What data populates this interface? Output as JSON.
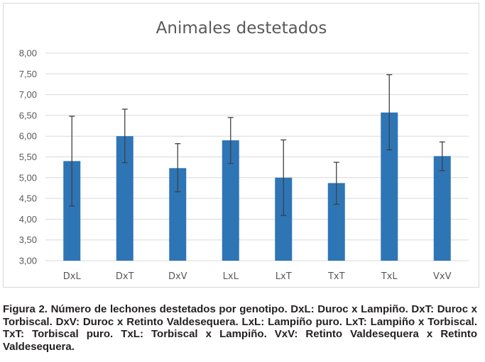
{
  "chart_data": {
    "type": "bar",
    "title": "Animales destetados",
    "xlabel": "",
    "ylabel": "",
    "categories": [
      "DxL",
      "DxT",
      "DxV",
      "LxL",
      "LxT",
      "TxT",
      "TxL",
      "VxV"
    ],
    "values": [
      5.4,
      6.0,
      5.23,
      5.9,
      5.0,
      4.87,
      6.57,
      5.52
    ],
    "error_low": [
      4.32,
      5.36,
      4.66,
      5.34,
      4.09,
      4.36,
      5.67,
      5.17
    ],
    "error_high": [
      6.48,
      6.65,
      5.82,
      6.45,
      5.91,
      5.37,
      7.48,
      5.86
    ],
    "ylim": [
      3.0,
      8.0
    ],
    "yticks": [
      "3,00",
      "3,50",
      "4,00",
      "4,50",
      "5,00",
      "5,50",
      "6,00",
      "6,50",
      "7,00",
      "7,50",
      "8,00"
    ],
    "grid": true,
    "legend": "none",
    "bar_color": "#2e75b6",
    "error_color": "#404040",
    "grid_color": "#d9d9d9"
  },
  "caption": "Figura 2. Número de lechones destetados por genotipo. DxL: Duroc x Lampiño. DxT: Duroc x Torbiscal. DxV: Duroc x Retinto Valdesequera. LxL: Lampiño puro. LxT: Lampiño x Torbiscal. TxT: Torbiscal puro. TxL: Torbiscal x Lampiño. VxV: Retinto Valdesequera x Retinto Valdesequera."
}
